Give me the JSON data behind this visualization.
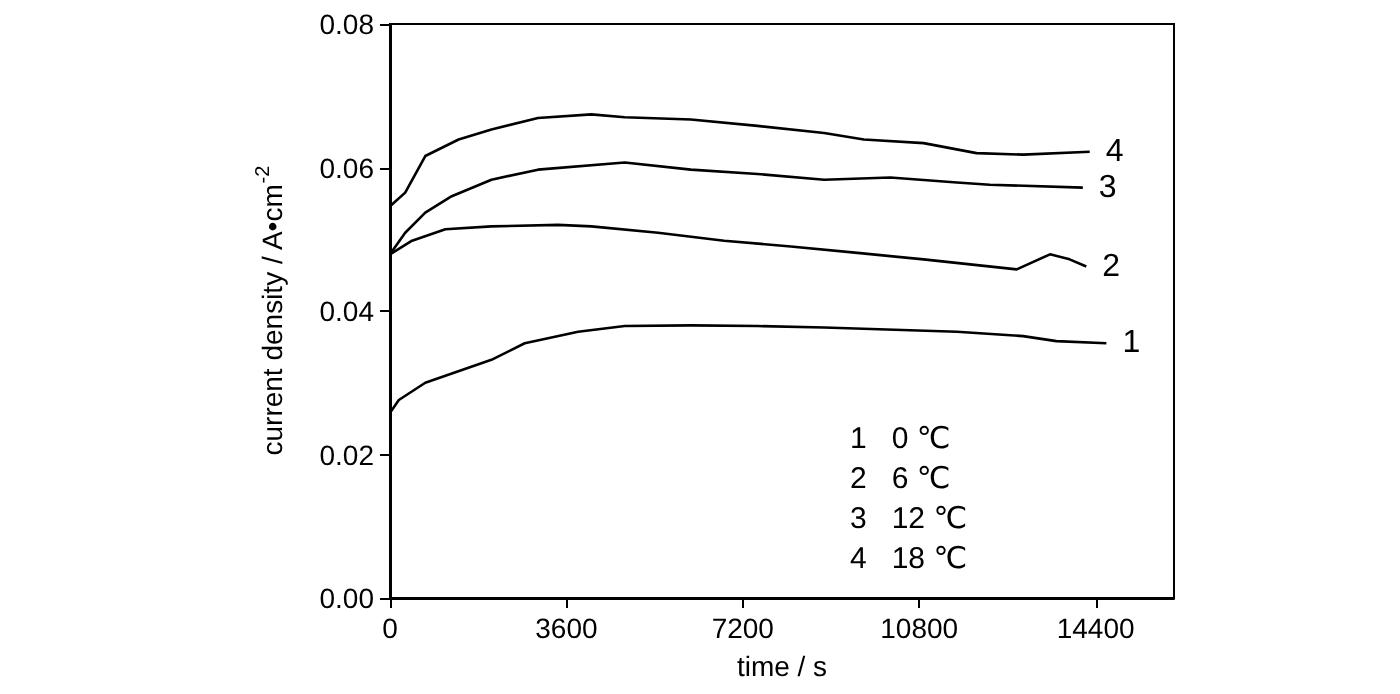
{
  "chart_data": {
    "type": "line",
    "xlabel": "time / s",
    "ylabel": "current density / A•cm$^{-2}$",
    "xlim": [
      0,
      16000
    ],
    "xticks": [
      0,
      3600,
      7200,
      10800,
      14400
    ],
    "ylim": [
      0,
      0.08
    ],
    "yticks": [
      {
        "value": 0,
        "label": "0.00"
      },
      {
        "value": 0.02,
        "label": "0.02"
      },
      {
        "value": 0.04,
        "label": "0.04"
      },
      {
        "value": 0.06,
        "label": "0.06"
      },
      {
        "value": 0.08,
        "label": "0.08"
      }
    ],
    "grid": false,
    "legend": false,
    "marker": "none",
    "line_style": "solid",
    "annotations": [
      "1   0 ℃",
      "2   6 ℃",
      "3   12 ℃",
      "4   18 ℃"
    ],
    "series": [
      {
        "name": "1",
        "color": "#000000",
        "x": [
          0,
          180,
          720,
          2070,
          2750,
          3840,
          4790,
          6140,
          7500,
          8860,
          11570,
          12920,
          13600,
          14620
        ],
        "values": [
          0.0258,
          0.0276,
          0.03,
          0.0332,
          0.0355,
          0.0371,
          0.0379,
          0.038,
          0.0379,
          0.0377,
          0.0371,
          0.0365,
          0.0358,
          0.0355
        ]
      },
      {
        "name": "2",
        "color": "#000000",
        "x": [
          0,
          450,
          1130,
          2070,
          3430,
          4110,
          5470,
          6820,
          8180,
          9540,
          10890,
          12790,
          13470,
          13870,
          14210
        ],
        "values": [
          0.0479,
          0.0498,
          0.0514,
          0.0518,
          0.052,
          0.0518,
          0.0509,
          0.0498,
          0.049,
          0.0481,
          0.0472,
          0.0458,
          0.0479,
          0.0472,
          0.0462
        ]
      },
      {
        "name": "3",
        "color": "#000000",
        "x": [
          0,
          310,
          720,
          1260,
          2070,
          3020,
          4790,
          6140,
          7500,
          8860,
          10210,
          11570,
          12240,
          14140
        ],
        "values": [
          0.0479,
          0.0509,
          0.0537,
          0.056,
          0.0583,
          0.0597,
          0.0607,
          0.0597,
          0.0591,
          0.0583,
          0.0586,
          0.0579,
          0.0576,
          0.0572
        ]
      },
      {
        "name": "4",
        "color": "#000000",
        "x": [
          0,
          310,
          720,
          1400,
          2070,
          3020,
          4110,
          4790,
          6140,
          7500,
          8860,
          9670,
          10890,
          11970,
          12920,
          14280
        ],
        "values": [
          0.0546,
          0.0565,
          0.0616,
          0.0639,
          0.0653,
          0.0669,
          0.0674,
          0.067,
          0.0667,
          0.0658,
          0.0648,
          0.0639,
          0.0634,
          0.062,
          0.0618,
          0.0622
        ]
      }
    ]
  }
}
